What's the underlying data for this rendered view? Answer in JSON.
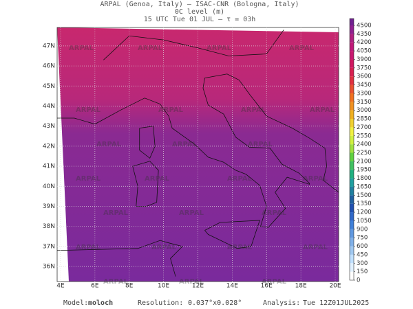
{
  "header": {
    "line1": "ARPAL (Genoa, Italy)  –  ISAC-CNR (Bologna, Italy)",
    "line2": "0C level (m)",
    "line3": "15 UTC Tue 01 JUL  –  τ = 03h"
  },
  "map": {
    "latlim": [
      35.25,
      47.92
    ],
    "lonlim": [
      3.8,
      20.2
    ],
    "lat_ticks": [
      {
        "value": 36,
        "label": "36N"
      },
      {
        "value": 37,
        "label": "37N"
      },
      {
        "value": 38,
        "label": "38N"
      },
      {
        "value": 39,
        "label": "39N"
      },
      {
        "value": 40,
        "label": "40N"
      },
      {
        "value": 41,
        "label": "41N"
      },
      {
        "value": 42,
        "label": "42N"
      },
      {
        "value": 43,
        "label": "43N"
      },
      {
        "value": 44,
        "label": "44N"
      },
      {
        "value": 45,
        "label": "45N"
      },
      {
        "value": 46,
        "label": "46N"
      },
      {
        "value": 47,
        "label": "47N"
      }
    ],
    "lon_ticks": [
      {
        "value": 4,
        "label": "4E"
      },
      {
        "value": 6,
        "label": "6E"
      },
      {
        "value": 8,
        "label": "8E"
      },
      {
        "value": 10,
        "label": "10E"
      },
      {
        "value": 12,
        "label": "12E"
      },
      {
        "value": 14,
        "label": "14E"
      },
      {
        "value": 16,
        "label": "16E"
      },
      {
        "value": 18,
        "label": "18E"
      },
      {
        "value": 20,
        "label": "20E"
      }
    ],
    "watermark": "ARPAL"
  },
  "colorbar": {
    "lim": [
      0,
      4500
    ],
    "ticks": [
      0,
      150,
      300,
      450,
      600,
      750,
      900,
      1050,
      1200,
      1350,
      1500,
      1650,
      1800,
      1950,
      2100,
      2250,
      2400,
      2550,
      2700,
      2850,
      3000,
      3150,
      3300,
      3450,
      3600,
      3750,
      3900,
      4050,
      4200,
      4350,
      4500
    ],
    "colors": [
      "#ffffff",
      "#e0f0ff",
      "#c0e0ff",
      "#a0c8f0",
      "#80b0e8",
      "#6098e0",
      "#4080d8",
      "#3068c8",
      "#2050b0",
      "#2060a0",
      "#2080a0",
      "#20a0a0",
      "#20b080",
      "#40c060",
      "#60d040",
      "#a0e040",
      "#d0f040",
      "#f0f040",
      "#f0d030",
      "#f0b020",
      "#f09020",
      "#f07020",
      "#e85030",
      "#e03040",
      "#d82050",
      "#d01860",
      "#c81870",
      "#c01878",
      "#b02080",
      "#902090"
    ]
  },
  "footer": {
    "model_label": "Model:",
    "model": "moloch",
    "resolution_label": "Resolution:",
    "resolution": "0.037°x0.028°",
    "analysis_label": "Analysis:",
    "analysis": "Tue 12Z01JUL2025"
  }
}
